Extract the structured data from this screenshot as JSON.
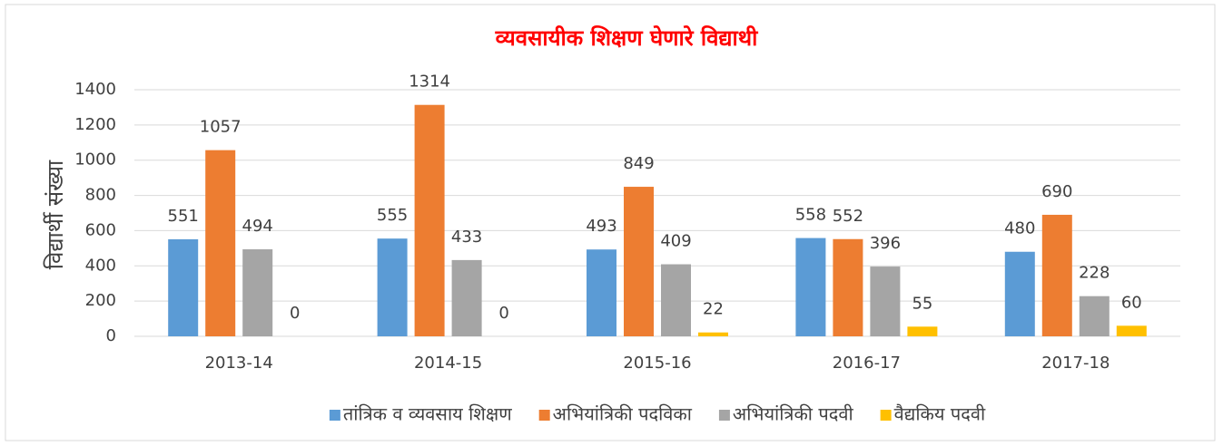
{
  "chart_data": {
    "type": "bar",
    "title": "व्यवसायीक शिक्षण घेणारे विद्याथी",
    "y_label": "विद्यार्थी संख्या",
    "categories": [
      "2013-14",
      "2014-15",
      "2015-16",
      "2016-17",
      "2017-18"
    ],
    "series": [
      {
        "name": "तांत्रिक व व्यवसाय शिक्षण",
        "color": "#5b9bd5",
        "values": [
          551,
          555,
          493,
          558,
          480
        ]
      },
      {
        "name": "अभियांत्रिकी पदविका",
        "color": "#ed7d31",
        "values": [
          1057,
          1314,
          849,
          552,
          690
        ]
      },
      {
        "name": "अभियांत्रिकी पदवी",
        "color": "#a5a5a5",
        "values": [
          494,
          433,
          409,
          396,
          228
        ]
      },
      {
        "name": "वैद्यकिय पदवी",
        "color": "#ffc000",
        "values": [
          0,
          0,
          22,
          55,
          60
        ]
      }
    ],
    "ylim": [
      0,
      1400
    ],
    "yticks": [
      0,
      200,
      400,
      600,
      800,
      1000,
      1200,
      1400
    ],
    "grid": true,
    "legend": "bottom"
  }
}
